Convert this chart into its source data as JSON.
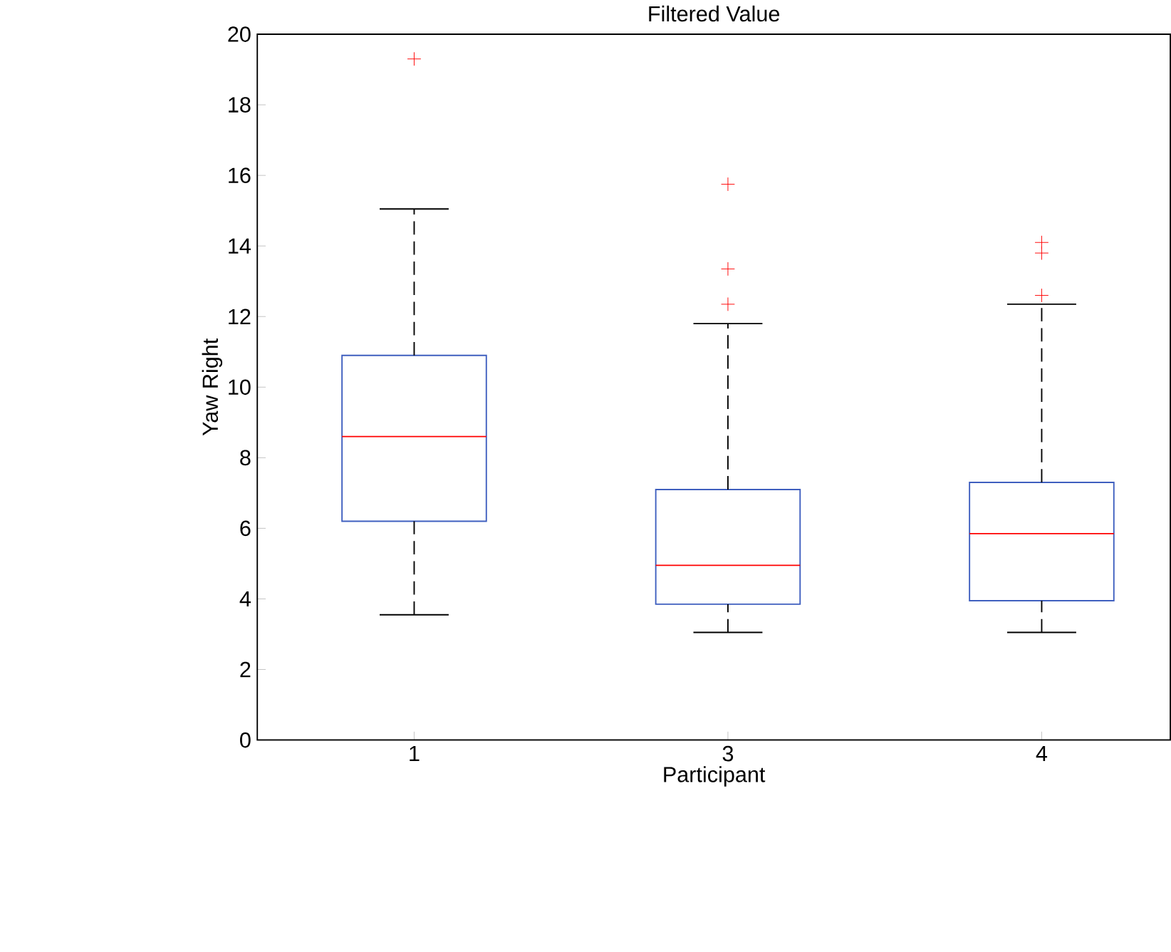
{
  "chart_data": {
    "type": "box",
    "title": "Filtered Value",
    "xlabel": "Participant",
    "ylabel": "Yaw Right",
    "categories": [
      "1",
      "3",
      "4"
    ],
    "ylim": [
      0,
      20
    ],
    "yticks": [
      0,
      2,
      4,
      6,
      8,
      10,
      12,
      14,
      16,
      18,
      20
    ],
    "grid": false,
    "marker": "cross",
    "series": [
      {
        "color": "#3f5fbf",
        "boxes": [
          {
            "low": 3.55,
            "q1": 6.2,
            "median": 8.6,
            "q3": 10.9,
            "high": 15.05,
            "outliers": [
              19.3
            ]
          },
          {
            "low": 3.05,
            "q1": 3.85,
            "median": 4.95,
            "q3": 7.1,
            "high": 11.8,
            "outliers": [
              15.75,
              13.35,
              12.35
            ]
          },
          {
            "low": 3.05,
            "q1": 3.95,
            "median": 5.85,
            "q3": 7.3,
            "high": 12.35,
            "outliers": [
              14.1,
              13.8,
              12.6
            ]
          }
        ]
      }
    ]
  }
}
